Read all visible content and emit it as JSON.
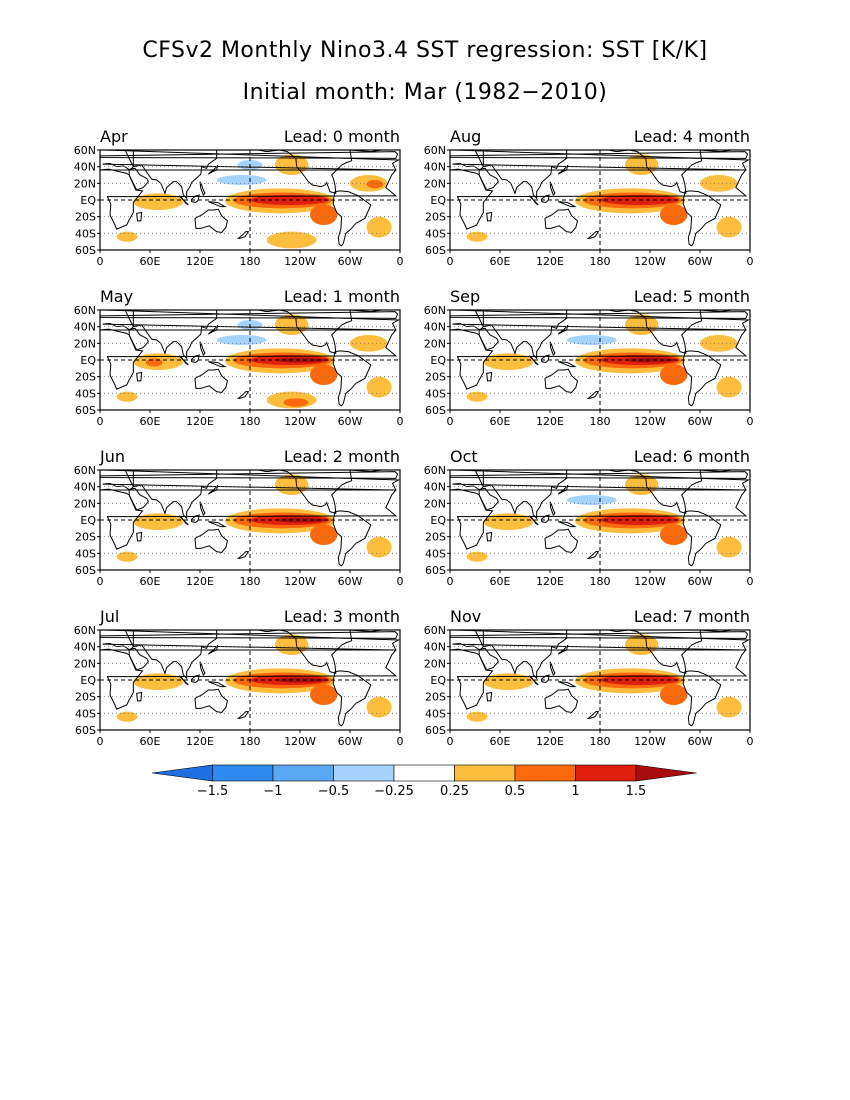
{
  "title": "CFSv2 Monthly Nino3.4 SST regression: SST [K/K]",
  "subtitle": "Initial month: Mar (1982−2010)",
  "lat_labels": [
    "60N",
    "40N",
    "20N",
    "EQ",
    "20S",
    "40S",
    "60S"
  ],
  "lon_labels": [
    "0",
    "60E",
    "120E",
    "180",
    "120W",
    "60W",
    "0"
  ],
  "panels": [
    {
      "month": "Apr",
      "lead": "Lead: 0 month",
      "pattern": {
        "tongue": 0.55,
        "south": 0.5,
        "cool": 0.9,
        "natl": 0.5,
        "io": 0.35
      }
    },
    {
      "month": "May",
      "lead": "Lead: 1 month",
      "pattern": {
        "tongue": 0.85,
        "south": 0.55,
        "cool": 1.0,
        "natl": 0.4,
        "io": 0.45
      }
    },
    {
      "month": "Jun",
      "lead": "Lead: 2 month",
      "pattern": {
        "tongue": 0.75,
        "south": 0.2,
        "cool": 0.3,
        "natl": 0.1,
        "io": 0.4
      }
    },
    {
      "month": "Jul",
      "lead": "Lead: 3 month",
      "pattern": {
        "tongue": 0.75,
        "south": 0.15,
        "cool": 0.15,
        "natl": 0.1,
        "io": 0.25
      }
    },
    {
      "month": "Aug",
      "lead": "Lead: 4 month",
      "pattern": {
        "tongue": 0.7,
        "south": 0.15,
        "cool": 0.2,
        "natl": 0.3,
        "io": 0.15
      }
    },
    {
      "month": "Sep",
      "lead": "Lead: 5 month",
      "pattern": {
        "tongue": 0.75,
        "south": 0.2,
        "cool": 0.55,
        "natl": 0.25,
        "io": 0.35
      }
    },
    {
      "month": "Oct",
      "lead": "Lead: 6 month",
      "pattern": {
        "tongue": 0.65,
        "south": 0.15,
        "cool": 0.4,
        "natl": 0.2,
        "io": 0.35
      }
    },
    {
      "month": "Nov",
      "lead": "Lead: 7 month",
      "pattern": {
        "tongue": 0.55,
        "south": 0.15,
        "cool": 0.2,
        "natl": 0.1,
        "io": 0.3
      }
    }
  ],
  "colorbar": {
    "labels": [
      "−1.5",
      "−1",
      "−0.5",
      "−0.25",
      "0.25",
      "0.5",
      "1",
      "1.5"
    ],
    "colors": [
      "#1e6fe0",
      "#2f8af0",
      "#5aa8f4",
      "#a6d3fb",
      "#ffffff",
      "#fdbe3e",
      "#fa6a0d",
      "#e01e0e",
      "#a80c0c"
    ]
  }
}
